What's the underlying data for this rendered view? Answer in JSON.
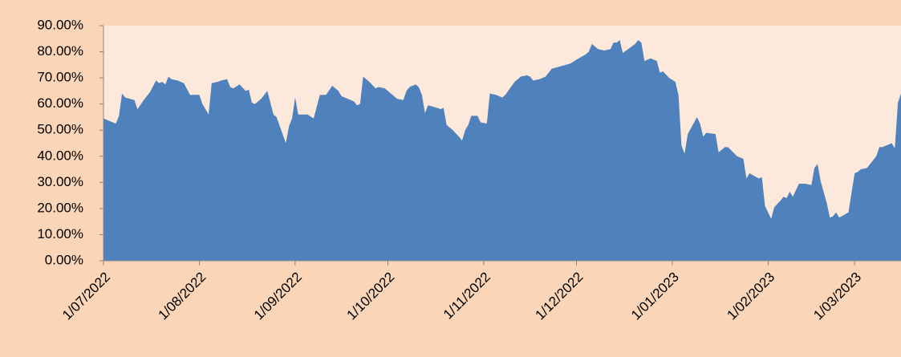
{
  "chart_data": {
    "type": "area",
    "color": "#4f81bd",
    "x": [
      "1/07/2022",
      "4/07/2022",
      "5/07/2022",
      "6/07/2022",
      "7/07/2022",
      "8/07/2022",
      "11/07/2022",
      "12/07/2022",
      "14/07/2022",
      "16/07/2022",
      "18/07/2022",
      "19/07/2022",
      "20/07/2022",
      "21/07/2022",
      "22/07/2022",
      "23/07/2022",
      "25/07/2022",
      "27/07/2022",
      "29/07/2022",
      "1/08/2022",
      "2/08/2022",
      "4/08/2022",
      "5/08/2022",
      "7/08/2022",
      "8/08/2022",
      "10/08/2022",
      "11/08/2022",
      "12/08/2022",
      "14/08/2022",
      "16/08/2022",
      "17/08/2022",
      "18/08/2022",
      "19/08/2022",
      "21/08/2022",
      "23/08/2022",
      "25/08/2022",
      "26/08/2022",
      "29/08/2022",
      "30/08/2022",
      "31/08/2022",
      "1/09/2022",
      "2/09/2022",
      "5/09/2022",
      "7/09/2022",
      "9/09/2022",
      "11/09/2022",
      "13/09/2022",
      "15/09/2022",
      "16/09/2022",
      "20/09/2022",
      "21/09/2022",
      "22/09/2022",
      "23/09/2022",
      "25/09/2022",
      "27/09/2022",
      "28/09/2022",
      "30/09/2022",
      "3/10/2022",
      "4/10/2022",
      "6/10/2022",
      "7/10/2022",
      "8/10/2022",
      "10/10/2022",
      "11/10/2022",
      "12/10/2022",
      "13/10/2022",
      "14/10/2022",
      "17/10/2022",
      "18/10/2022",
      "19/10/2022",
      "20/10/2022",
      "22/10/2022",
      "24/10/2022",
      "25/10/2022",
      "26/10/2022",
      "27/10/2022",
      "28/10/2022",
      "30/10/2022",
      "31/10/2022",
      "2/11/2022",
      "3/11/2022",
      "5/11/2022",
      "7/11/2022",
      "8/11/2022",
      "11/11/2022",
      "13/11/2022",
      "15/11/2022",
      "16/11/2022",
      "17/11/2022",
      "19/11/2022",
      "21/11/2022",
      "23/11/2022",
      "26/11/2022",
      "29/11/2022",
      "1/12/2022",
      "4/12/2022",
      "5/12/2022",
      "6/12/2022",
      "7/12/2022",
      "8/12/2022",
      "10/12/2022",
      "12/12/2022",
      "13/12/2022",
      "14/12/2022",
      "15/12/2022",
      "16/12/2022",
      "20/12/2022",
      "21/12/2022",
      "22/12/2022",
      "23/12/2022",
      "25/12/2022",
      "27/12/2022",
      "28/12/2022",
      "29/12/2022",
      "31/12/2022",
      "2/01/2023",
      "3/01/2023",
      "4/01/2023",
      "5/01/2023",
      "6/01/2023",
      "9/01/2023",
      "10/01/2023",
      "11/01/2023",
      "12/01/2023",
      "15/01/2023",
      "16/01/2023",
      "18/01/2023",
      "19/01/2023",
      "22/01/2023",
      "24/01/2023",
      "25/01/2023",
      "26/01/2023",
      "29/01/2023",
      "30/01/2023",
      "31/01/2023",
      "2/02/2023",
      "3/02/2023",
      "5/02/2023",
      "6/02/2023",
      "7/02/2023",
      "8/02/2023",
      "9/02/2023",
      "11/02/2023",
      "13/02/2023",
      "15/02/2023",
      "16/02/2023",
      "17/02/2023",
      "18/02/2023",
      "20/02/2023",
      "21/02/2023",
      "22/02/2023",
      "23/02/2023",
      "24/02/2023",
      "27/02/2023",
      "28/02/2023",
      "1/03/2023",
      "2/03/2023",
      "3/03/2023",
      "5/03/2023",
      "7/03/2023",
      "8/03/2023",
      "9/03/2023",
      "10/03/2023",
      "11/03/2023",
      "13/03/2023",
      "14/03/2023",
      "15/03/2023",
      "16/03/2023"
    ],
    "values": [
      54.5,
      53,
      52.5,
      55.5,
      64,
      62.5,
      61.5,
      58,
      61.5,
      64.5,
      69,
      68,
      68.5,
      67.5,
      70.5,
      69.5,
      69,
      68,
      63.5,
      63.5,
      60,
      56,
      68,
      68.5,
      69,
      69.5,
      66.5,
      66,
      67.5,
      65,
      65.5,
      60.5,
      60,
      62,
      65,
      56,
      55,
      45,
      51.5,
      54.5,
      62.5,
      56,
      56,
      54.5,
      63.5,
      63.5,
      67,
      65,
      63,
      61,
      59.5,
      60,
      70.5,
      68.5,
      66,
      66.5,
      66,
      63,
      62,
      61.5,
      65,
      66.5,
      67.5,
      66.5,
      63.5,
      56.5,
      59.5,
      58.5,
      58,
      58.5,
      52,
      50,
      47.5,
      46,
      50,
      52,
      55.5,
      55.5,
      53,
      52.5,
      64,
      63.5,
      62.5,
      63.5,
      68.5,
      70.5,
      71,
      70.5,
      69,
      69.5,
      70.5,
      73.5,
      74.5,
      75.5,
      77,
      79,
      80,
      83,
      82,
      81,
      80.5,
      81,
      83.5,
      83.5,
      84.5,
      79.5,
      83,
      84.5,
      83.5,
      76.5,
      77.5,
      76.5,
      72,
      72.5,
      70,
      68.5,
      63.5,
      44,
      41,
      48.5,
      55,
      52.5,
      47.5,
      49,
      48.5,
      41.5,
      43.5,
      43.5,
      40,
      39,
      31.5,
      33.5,
      31.5,
      32,
      21,
      16,
      20.5,
      23,
      24.5,
      24,
      26.5,
      24.5,
      29.5,
      29.5,
      29,
      35.5,
      37,
      30.5,
      22,
      16.5,
      17,
      18.5,
      16.5,
      18.5,
      26,
      33.5,
      34,
      35,
      35.5,
      38.5,
      40,
      43.5,
      43.5,
      44,
      45,
      43,
      60.5,
      64
    ],
    "xlim": [
      "1/07/2022",
      "16/03/2023"
    ],
    "xticks": [
      "1/07/2022",
      "1/08/2022",
      "1/09/2022",
      "1/10/2022",
      "1/11/2022",
      "1/12/2022",
      "1/01/2023",
      "1/02/2023",
      "1/03/2023"
    ],
    "ylim": [
      0,
      90
    ],
    "yticks": [
      {
        "value": 0,
        "label": "0.00%"
      },
      {
        "value": 10,
        "label": "10.00%"
      },
      {
        "value": 20,
        "label": "20.00%"
      },
      {
        "value": 30,
        "label": "30.00%"
      },
      {
        "value": 40,
        "label": "40.00%"
      },
      {
        "value": 50,
        "label": "50.00%"
      },
      {
        "value": 60,
        "label": "60.00%"
      },
      {
        "value": 70,
        "label": "70.00%"
      },
      {
        "value": 80,
        "label": "80.00%"
      },
      {
        "value": 90,
        "label": "90.00%"
      }
    ]
  }
}
